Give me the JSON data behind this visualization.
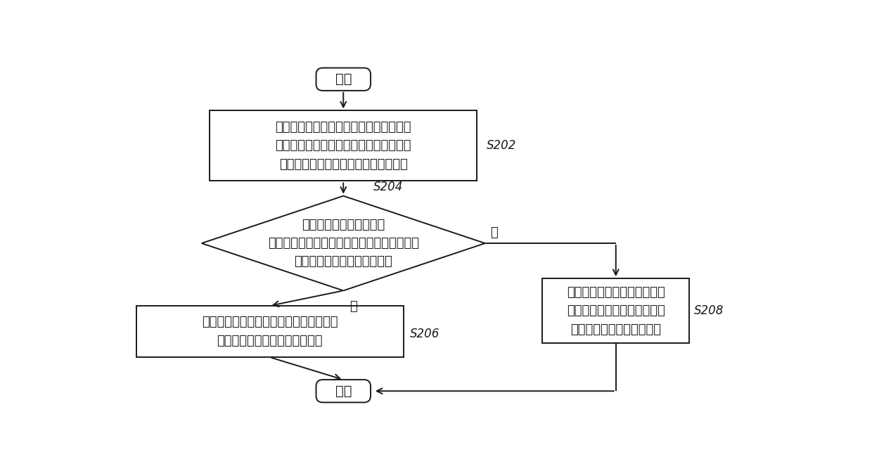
{
  "bg_color": "#ffffff",
  "line_color": "#1a1a1a",
  "start_text": "开始",
  "end_text": "结束",
  "s202_text": "基于空调系统运行制热模式，获取预设回\n油周期内的系统运行参数、与系统运行参\n数对应的累计运行时间和室外环境温度",
  "s202_label": "S202",
  "s204_text": "基于预设回油周期结束，\n判断系统运行参数、累计运行时间和室外环境\n温度是否均满足制热回油条件",
  "s204_label": "S204",
  "s206_text": "控制空调系统的压缩机升高运行频率，增\n大空调系统的电子膨胀阀的开度",
  "s206_label": "S206",
  "s208_text": "控制空调系统的四通阀进行换\n向，并控制压缩机升高运行频\n率，增大电子膨胀阀的开度",
  "s208_label": "S208",
  "yes_label": "是",
  "no_label": "否"
}
